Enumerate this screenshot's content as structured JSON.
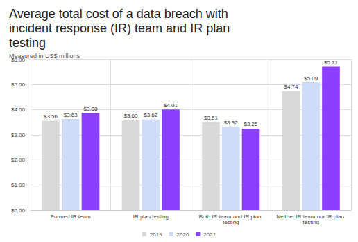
{
  "chart_data": {
    "type": "bar",
    "title": "Average total cost of a data breach with incident response (IR) team and IR plan testing",
    "subtitle": "Measured in US$ millions",
    "categories": [
      "Formed IR team",
      "IR plan testing",
      "Both IR team and IR plan testing",
      "Neither IR team nor IR plan testing"
    ],
    "series": [
      {
        "name": "2019",
        "color": "#d9d9d9",
        "values": [
          3.56,
          3.6,
          3.51,
          4.74
        ],
        "value_labels": [
          "$3.56",
          "$3.60",
          "$3.51",
          "$4.74"
        ]
      },
      {
        "name": "2020",
        "color": "#cfdcf7",
        "values": [
          3.63,
          3.62,
          3.32,
          5.09
        ],
        "value_labels": [
          "$3.63",
          "$3.62",
          "$3.32",
          "$5.09"
        ]
      },
      {
        "name": "2021",
        "color": "#8a3ffc",
        "values": [
          3.88,
          4.01,
          3.25,
          5.71
        ],
        "value_labels": [
          "$3.88",
          "$4.01",
          "$3.25",
          "$5.71"
        ]
      }
    ],
    "ylim": [
      0,
      6
    ],
    "yticks": [
      {
        "value": 0,
        "label": "$0.00"
      },
      {
        "value": 1,
        "label": "$1.00"
      },
      {
        "value": 2,
        "label": "$2.00"
      },
      {
        "value": 3,
        "label": "$3.00"
      },
      {
        "value": 4,
        "label": "$4.00"
      },
      {
        "value": 5,
        "label": "$5.00"
      },
      {
        "value": 6,
        "label": "$6.00"
      }
    ],
    "grid": true,
    "legend": "bottom",
    "data_labels": true
  }
}
